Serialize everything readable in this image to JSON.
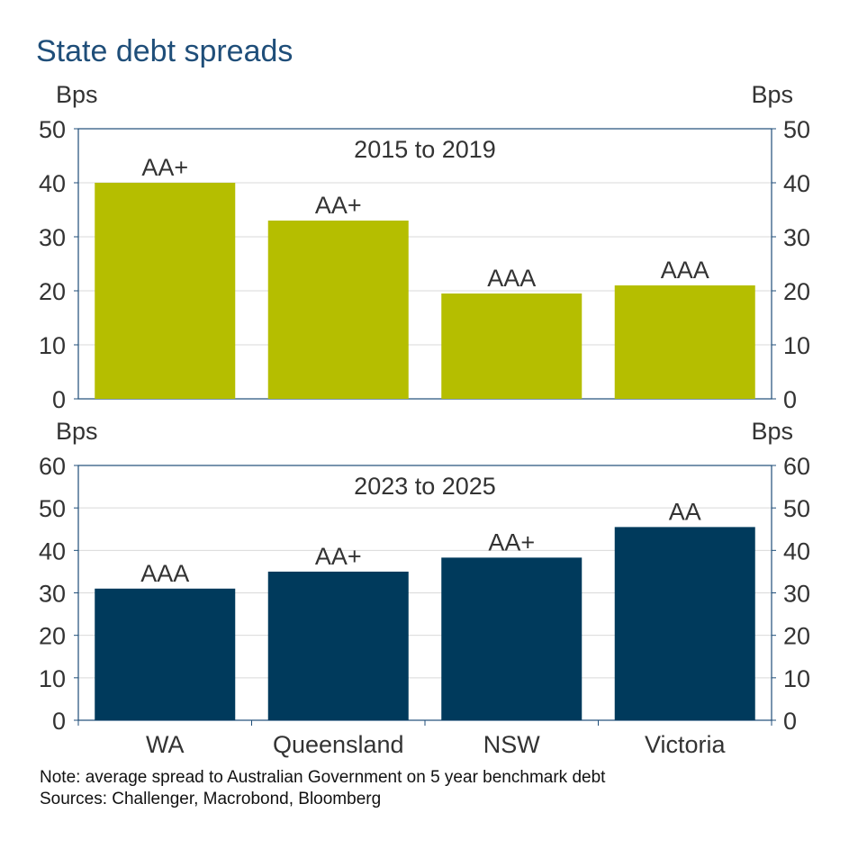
{
  "title": "State debt spreads",
  "notes": {
    "note": "Note: average spread to Australian Government on 5 year benchmark debt",
    "sources": "Sources: Challenger, Macrobond, Bloomberg"
  },
  "colors": {
    "top_bars": "#b5be00",
    "bottom_bars": "#003a5c",
    "grid": "#d9d9d9",
    "axis": "#1f4e79"
  },
  "chart_data": [
    {
      "type": "bar",
      "title": "2015 to 2019",
      "categories": [
        "WA",
        "Queensland",
        "NSW",
        "Victoria"
      ],
      "values": [
        40,
        33,
        19.5,
        21
      ],
      "data_labels": [
        "AA+",
        "AA+",
        "AAA",
        "AAA"
      ],
      "ylabel_left": "Bps",
      "ylabel_right": "Bps",
      "ylim": [
        0,
        50
      ],
      "yticks": [
        0,
        10,
        20,
        30,
        40,
        50
      ],
      "grid": true
    },
    {
      "type": "bar",
      "title": "2023 to 2025",
      "categories": [
        "WA",
        "Queensland",
        "NSW",
        "Victoria"
      ],
      "values": [
        31,
        35,
        38.3,
        45.5
      ],
      "data_labels": [
        "AAA",
        "AA+",
        "AA+",
        "AA"
      ],
      "ylabel_left": "Bps",
      "ylabel_right": "Bps",
      "ylim": [
        0,
        60
      ],
      "yticks": [
        0,
        10,
        20,
        30,
        40,
        50,
        60
      ],
      "grid": true
    }
  ]
}
